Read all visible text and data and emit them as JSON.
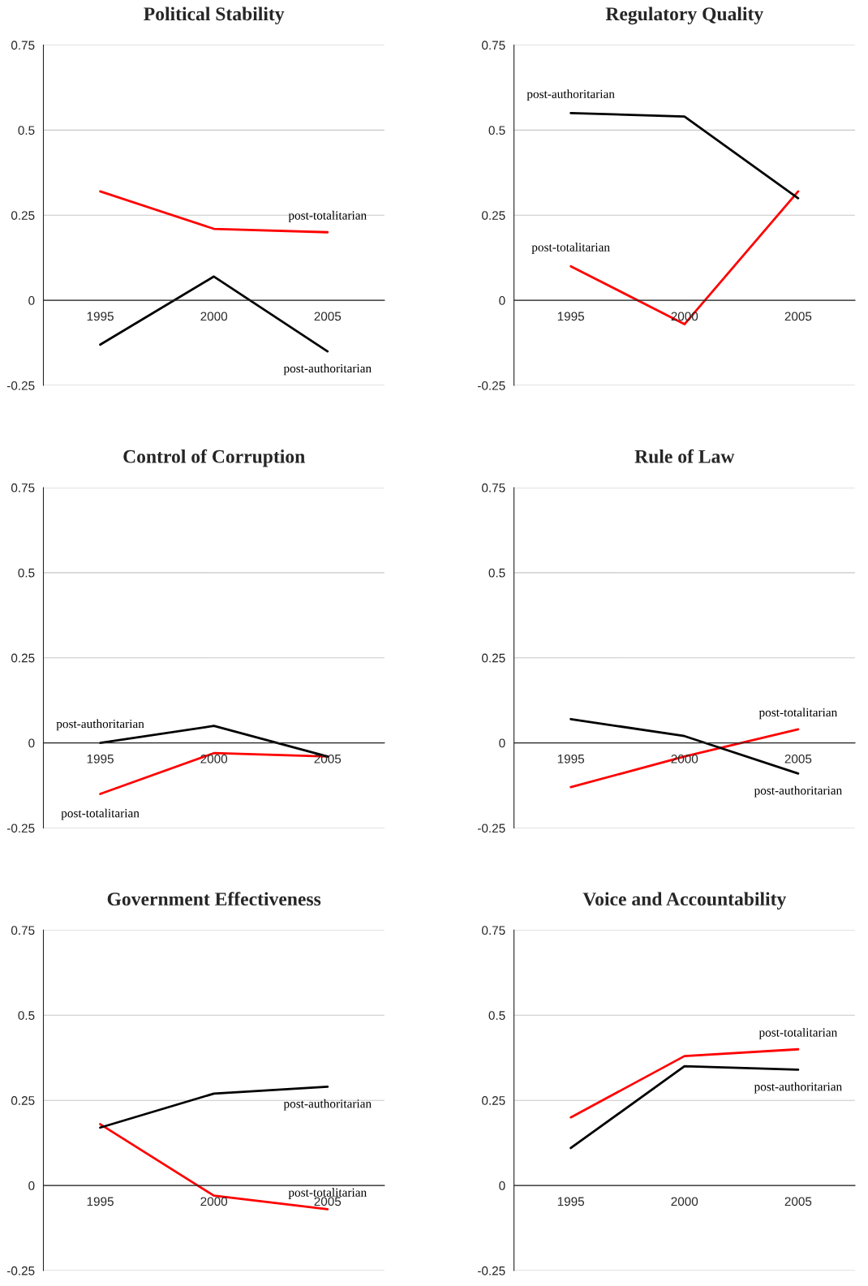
{
  "chart_data": [
    {
      "type": "line",
      "title": "Political Stability",
      "categories": [
        "1995",
        "2000",
        "2005"
      ],
      "ylim": [
        -0.25,
        0.75
      ],
      "yticks": [
        -0.25,
        0,
        0.25,
        0.5,
        0.75
      ],
      "grid": "y",
      "series": [
        {
          "name": "post-totalitarian",
          "color": "#ff0000",
          "values": [
            0.32,
            0.21,
            0.2
          ]
        },
        {
          "name": "post-authoritarian",
          "color": "#000000",
          "values": [
            -0.13,
            0.07,
            -0.15
          ]
        }
      ]
    },
    {
      "type": "line",
      "title": "Regulatory Quality",
      "categories": [
        "1995",
        "2000",
        "2005"
      ],
      "ylim": [
        -0.25,
        0.75
      ],
      "yticks": [
        -0.25,
        0,
        0.25,
        0.5,
        0.75
      ],
      "grid": "y",
      "series": [
        {
          "name": "post-totalitarian",
          "color": "#ff0000",
          "values": [
            0.1,
            -0.07,
            0.32
          ]
        },
        {
          "name": "post-authoritarian",
          "color": "#000000",
          "values": [
            0.55,
            0.54,
            0.3
          ]
        }
      ]
    },
    {
      "type": "line",
      "title": "Control of Corruption",
      "categories": [
        "1995",
        "2000",
        "2005"
      ],
      "ylim": [
        -0.25,
        0.75
      ],
      "yticks": [
        -0.25,
        0,
        0.25,
        0.5,
        0.75
      ],
      "grid": "y",
      "series": [
        {
          "name": "post-totalitarian",
          "color": "#ff0000",
          "values": [
            -0.15,
            -0.03,
            -0.04
          ]
        },
        {
          "name": "post-authoritarian",
          "color": "#000000",
          "values": [
            0.0,
            0.05,
            -0.04
          ]
        }
      ]
    },
    {
      "type": "line",
      "title": "Rule of Law",
      "categories": [
        "1995",
        "2000",
        "2005"
      ],
      "ylim": [
        -0.25,
        0.75
      ],
      "yticks": [
        -0.25,
        0,
        0.25,
        0.5,
        0.75
      ],
      "grid": "y",
      "series": [
        {
          "name": "post-totalitarian",
          "color": "#ff0000",
          "values": [
            -0.13,
            -0.04,
            0.04
          ]
        },
        {
          "name": "post-authoritarian",
          "color": "#000000",
          "values": [
            0.07,
            0.02,
            -0.09
          ]
        }
      ]
    },
    {
      "type": "line",
      "title": "Government Effectiveness",
      "categories": [
        "1995",
        "2000",
        "2005"
      ],
      "ylim": [
        -0.25,
        0.75
      ],
      "yticks": [
        -0.25,
        0,
        0.25,
        0.5,
        0.75
      ],
      "grid": "y",
      "series": [
        {
          "name": "post-totalitarian",
          "color": "#ff0000",
          "values": [
            0.18,
            -0.03,
            -0.07
          ]
        },
        {
          "name": "post-authoritarian",
          "color": "#000000",
          "values": [
            0.17,
            0.27,
            0.29
          ]
        }
      ]
    },
    {
      "type": "line",
      "title": "Voice and Accountability",
      "categories": [
        "1995",
        "2000",
        "2005"
      ],
      "ylim": [
        -0.25,
        0.75
      ],
      "yticks": [
        -0.25,
        0,
        0.25,
        0.5,
        0.75
      ],
      "grid": "y",
      "series": [
        {
          "name": "post-totalitarian",
          "color": "#ff0000",
          "values": [
            0.2,
            0.38,
            0.4
          ]
        },
        {
          "name": "post-authoritarian",
          "color": "#000000",
          "values": [
            0.11,
            0.35,
            0.34
          ]
        }
      ]
    }
  ]
}
